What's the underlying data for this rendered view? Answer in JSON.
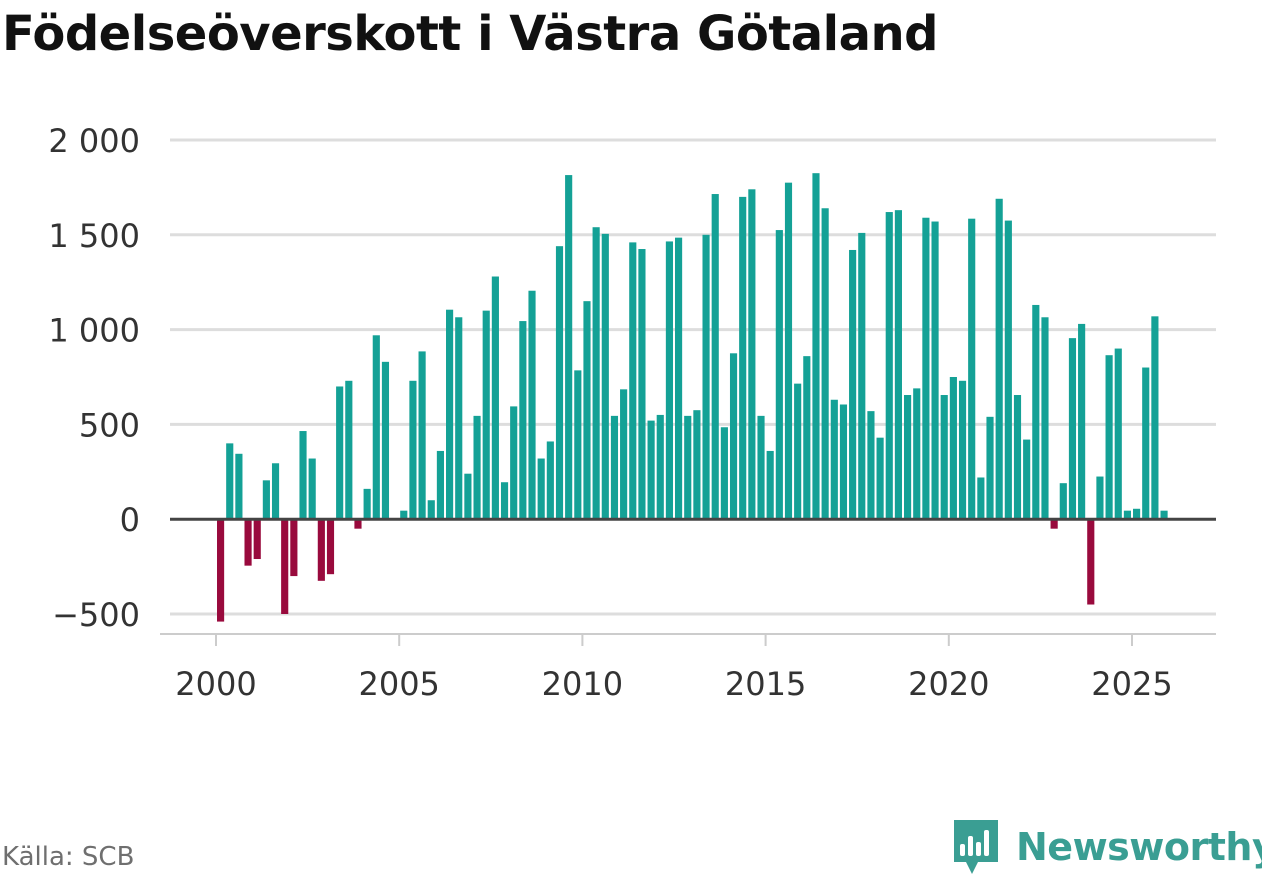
{
  "title": "Födelseöverskott i Västra Götaland",
  "source": "Källa: SCB",
  "brand": "Newsworthy",
  "colors": {
    "positive": "#14a196",
    "negative": "#990a3d",
    "grid": "#dddddd",
    "zero": "#444444",
    "brand": "#3a9e93"
  },
  "chart_data": {
    "type": "bar",
    "title": "Födelseöverskott i Västra Götaland",
    "xlabel": "",
    "ylabel": "",
    "ylim": [
      -550,
      2000
    ],
    "xlim": [
      1999.5,
      2026.5
    ],
    "yticks": [
      -500,
      0,
      500,
      1000,
      1500,
      2000
    ],
    "ytick_labels": [
      "−500",
      "0",
      "500",
      "1 000",
      "1 500",
      "2 000"
    ],
    "xticks": [
      2000,
      2005,
      2010,
      2015,
      2020,
      2025
    ],
    "xtick_labels": [
      "2000",
      "2005",
      "2010",
      "2015",
      "2020",
      "2025"
    ],
    "granularity": "quarterly",
    "start": "2000 Q1",
    "values": [
      -540,
      400,
      345,
      -245,
      -210,
      205,
      295,
      -500,
      -300,
      465,
      320,
      -325,
      -290,
      700,
      730,
      -50,
      160,
      970,
      830,
      0,
      45,
      730,
      885,
      100,
      360,
      1105,
      1065,
      240,
      545,
      1100,
      1280,
      195,
      595,
      1045,
      1205,
      320,
      410,
      1440,
      1815,
      785,
      1150,
      1540,
      1505,
      545,
      685,
      1460,
      1425,
      520,
      550,
      1465,
      1485,
      545,
      575,
      1500,
      1715,
      485,
      875,
      1700,
      1740,
      545,
      360,
      1525,
      1775,
      715,
      860,
      1825,
      1640,
      630,
      605,
      1420,
      1510,
      570,
      430,
      1620,
      1630,
      655,
      690,
      1590,
      1570,
      655,
      750,
      730,
      1585,
      220,
      540,
      1690,
      1575,
      655,
      420,
      1130,
      1065,
      -50,
      190,
      955,
      1030,
      -450,
      225,
      865,
      900,
      45,
      55,
      800,
      1070,
      45
    ]
  }
}
